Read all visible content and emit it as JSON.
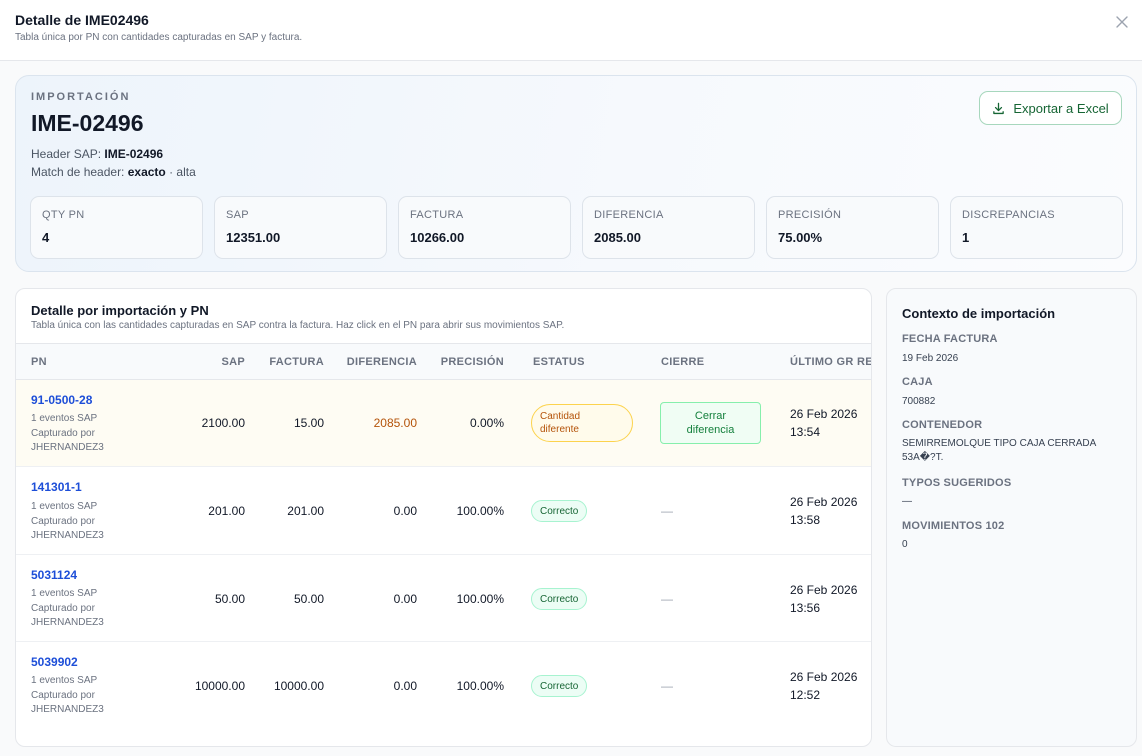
{
  "modal": {
    "title": "Detalle de IME02496",
    "subtitle": "Tabla única por PN con cantidades capturadas en SAP y factura."
  },
  "summary": {
    "eyebrow": "IMPORTACIÓN",
    "code": "IME-02496",
    "header_sap_label": "Header SAP: ",
    "header_sap_value": "IME-02496",
    "match_label": "Match de header: ",
    "match_value": "exacto",
    "match_suffix": " · alta",
    "export_label": "Exportar a Excel",
    "stats": [
      {
        "label": "QTY PN",
        "value": "4"
      },
      {
        "label": "SAP",
        "value": "12351.00"
      },
      {
        "label": "FACTURA",
        "value": "10266.00"
      },
      {
        "label": "DIFERENCIA",
        "value": "2085.00"
      },
      {
        "label": "PRECISIÓN",
        "value": "75.00%"
      },
      {
        "label": "DISCREPANCIAS",
        "value": "1"
      }
    ]
  },
  "table": {
    "title": "Detalle por importación y PN",
    "subtitle": "Tabla única con las cantidades capturadas en SAP contra la factura. Haz click en el PN para abrir sus movimientos SAP.",
    "headers": {
      "pn": "PN",
      "sap": "SAP",
      "factura": "FACTURA",
      "diferencia": "DIFERENCIA",
      "precision": "PRECISIÓN",
      "estatus": "ESTATUS",
      "cierre": "CIERRE",
      "ultimo_gr": "ÚLTIMO GR REAL"
    },
    "rows": [
      {
        "pn": "91-0500-28",
        "events": "1 eventos SAP",
        "captured": "Capturado por",
        "user": "JHERNANDEZ3",
        "sap": "2100.00",
        "factura": "15.00",
        "diferencia": "2085.00",
        "precision": "0.00%",
        "status_line1": "Cantidad",
        "status_line2": "diferente",
        "cierre_line1": "Cerrar",
        "cierre_line2": "diferencia",
        "gr_date": "26 Feb 2026",
        "gr_time": "13:54"
      },
      {
        "pn": "141301-1",
        "events": "1 eventos SAP",
        "captured": "Capturado por",
        "user": "JHERNANDEZ3",
        "sap": "201.00",
        "factura": "201.00",
        "diferencia": "0.00",
        "precision": "100.00%",
        "status": "Correcto",
        "cierre": "—",
        "gr_date": "26 Feb 2026",
        "gr_time": "13:58"
      },
      {
        "pn": "5031124",
        "events": "1 eventos SAP",
        "captured": "Capturado por",
        "user": "JHERNANDEZ3",
        "sap": "50.00",
        "factura": "50.00",
        "diferencia": "0.00",
        "precision": "100.00%",
        "status": "Correcto",
        "cierre": "—",
        "gr_date": "26 Feb 2026",
        "gr_time": "13:56"
      },
      {
        "pn": "5039902",
        "events": "1 eventos SAP",
        "captured": "Capturado por",
        "user": "JHERNANDEZ3",
        "sap": "10000.00",
        "factura": "10000.00",
        "diferencia": "0.00",
        "precision": "100.00%",
        "status": "Correcto",
        "cierre": "—",
        "gr_date": "26 Feb 2026",
        "gr_time": "12:52"
      }
    ]
  },
  "context": {
    "title": "Contexto de importación",
    "fields": [
      {
        "label": "FECHA FACTURA",
        "value": "19 Feb 2026"
      },
      {
        "label": "CAJA",
        "value": "700882"
      },
      {
        "label": "CONTENEDOR",
        "value": "SEMIRREMOLQUE TIPO CAJA CERRADA 53А�?T."
      },
      {
        "label": "TYPOS SUGERIDOS",
        "value": "—"
      },
      {
        "label": "MOVIMIENTOS 102",
        "value": "0"
      }
    ]
  },
  "colors": {
    "link": "#1d4ed8",
    "success": "#166534",
    "warning": "#b45309",
    "highlight_row": "#fefcf3"
  },
  "icons": {
    "close": "close-icon",
    "export": "download-icon"
  }
}
